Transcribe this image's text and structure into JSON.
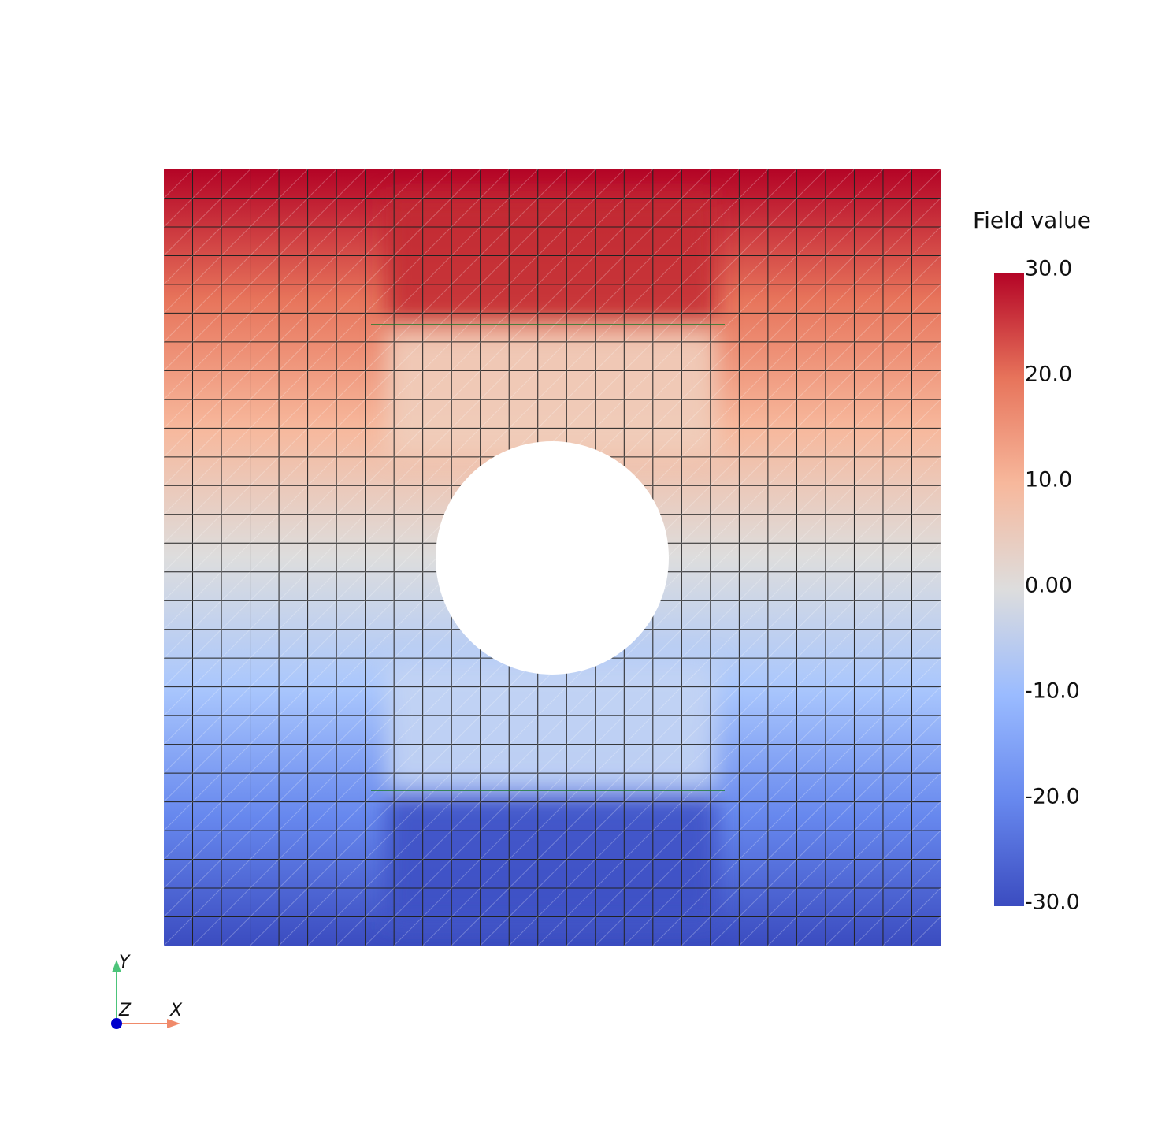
{
  "colorbar": {
    "title": "Field value",
    "range": [
      -30,
      30
    ],
    "ticks": [
      {
        "value": 30,
        "label": "30.0"
      },
      {
        "value": 20,
        "label": "20.0"
      },
      {
        "value": 10,
        "label": "10.0"
      },
      {
        "value": 0,
        "label": "0.00"
      },
      {
        "value": -10,
        "label": "-10.0"
      },
      {
        "value": -20,
        "label": "-20.0"
      },
      {
        "value": -30,
        "label": "-30.0"
      }
    ]
  },
  "axes": {
    "x": "X",
    "y": "Y",
    "z": "Z"
  }
}
